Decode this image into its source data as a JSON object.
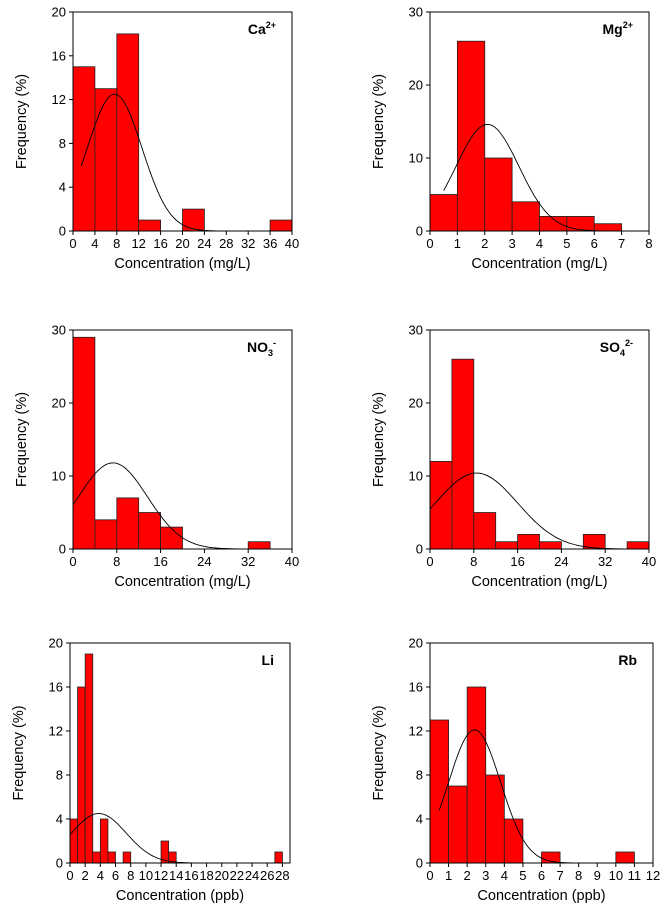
{
  "chart_data": [
    {
      "type": "bar",
      "title": "Ca",
      "title_sup": "2+",
      "xlabel": "Concentration (mg/L)",
      "ylabel": "Frequency (%)",
      "xlim": [
        0,
        40
      ],
      "ylim": [
        0,
        20
      ],
      "xticks": [
        "0",
        "4",
        "8",
        "12",
        "16",
        "20",
        "24",
        "28",
        "32",
        "36",
        "40"
      ],
      "yticks": [
        "0",
        "4",
        "8",
        "12",
        "16",
        "20"
      ],
      "bins": [
        [
          0,
          4,
          15
        ],
        [
          4,
          8,
          13
        ],
        [
          8,
          12,
          18
        ],
        [
          12,
          16,
          1
        ],
        [
          20,
          24,
          2
        ],
        [
          36,
          40,
          1
        ]
      ],
      "normal_curve": {
        "mean": 7.6,
        "sd": 5.0,
        "peak": 12.5,
        "range": [
          1.5,
          38
        ]
      }
    },
    {
      "type": "bar",
      "title": "Mg",
      "title_sup": "2+",
      "xlabel": "Concentration (mg/L)",
      "ylabel": "Frequency (%)",
      "xlim": [
        0,
        8
      ],
      "ylim": [
        0,
        30
      ],
      "xticks": [
        "0",
        "1",
        "2",
        "3",
        "4",
        "5",
        "6",
        "7",
        "8"
      ],
      "yticks": [
        "0",
        "10",
        "20",
        "30"
      ],
      "bins": [
        [
          0,
          1,
          5
        ],
        [
          1,
          2,
          26
        ],
        [
          2,
          3,
          10
        ],
        [
          3,
          4,
          4
        ],
        [
          4,
          5,
          2
        ],
        [
          5,
          6,
          2
        ],
        [
          6,
          7,
          1
        ]
      ],
      "normal_curve": {
        "mean": 2.1,
        "sd": 1.15,
        "peak": 14.6,
        "range": [
          0.5,
          7
        ]
      }
    },
    {
      "type": "bar",
      "title": "NO",
      "title_sub": "3",
      "title_sup": "-",
      "xlabel": "Concentration (mg/L)",
      "ylabel": "Frequency (%)",
      "xlim": [
        0,
        40
      ],
      "ylim": [
        0,
        30
      ],
      "xticks": [
        "0",
        "8",
        "16",
        "24",
        "32",
        "40"
      ],
      "yticks": [
        "0",
        "10",
        "20",
        "30"
      ],
      "bins": [
        [
          0,
          4,
          29
        ],
        [
          4,
          8,
          4
        ],
        [
          8,
          12,
          7
        ],
        [
          12,
          16,
          5
        ],
        [
          16,
          20,
          3
        ],
        [
          32,
          36,
          1
        ]
      ],
      "normal_curve": {
        "mean": 7.3,
        "sd": 6.3,
        "peak": 11.8,
        "range": [
          0,
          36
        ]
      }
    },
    {
      "type": "bar",
      "title": "SO",
      "title_sub": "4",
      "title_sup": "2-",
      "xlabel": "Concentration (mg/L)",
      "ylabel": "Frequency (%)",
      "xlim": [
        0,
        40
      ],
      "ylim": [
        0,
        30
      ],
      "xticks": [
        "0",
        "8",
        "16",
        "24",
        "32",
        "40"
      ],
      "yticks": [
        "0",
        "10",
        "20",
        "30"
      ],
      "bins": [
        [
          0,
          4,
          12
        ],
        [
          4,
          8,
          26
        ],
        [
          8,
          12,
          5
        ],
        [
          12,
          16,
          1
        ],
        [
          16,
          20,
          2
        ],
        [
          20,
          24,
          1
        ],
        [
          28,
          32,
          2
        ],
        [
          36,
          40,
          1
        ]
      ],
      "normal_curve": {
        "mean": 8.5,
        "sd": 7.5,
        "peak": 10.4,
        "range": [
          0,
          40
        ]
      }
    },
    {
      "type": "bar",
      "title": "Li",
      "xlabel": "Concentration (ppb)",
      "ylabel": "Frequency (%)",
      "xlim": [
        0,
        29
      ],
      "ylim": [
        0,
        20
      ],
      "xticks": [
        "0",
        "2",
        "4",
        "6",
        "8",
        "10",
        "12",
        "14",
        "16",
        "18",
        "20",
        "22",
        "24",
        "26",
        "28"
      ],
      "yticks": [
        "0",
        "4",
        "8",
        "12",
        "16",
        "20"
      ],
      "bins": [
        [
          0,
          1,
          4
        ],
        [
          1,
          2,
          16
        ],
        [
          2,
          3,
          19
        ],
        [
          3,
          4,
          1
        ],
        [
          4,
          5,
          4
        ],
        [
          5,
          6,
          1
        ],
        [
          7,
          8,
          1
        ],
        [
          12,
          13,
          2
        ],
        [
          13,
          14,
          1
        ],
        [
          27,
          28,
          1
        ]
      ],
      "normal_curve": {
        "mean": 3.8,
        "sd": 3.6,
        "peak": 4.5,
        "range": [
          0,
          28
        ]
      }
    },
    {
      "type": "bar",
      "title": "Rb",
      "xlabel": "Concentration (ppb)",
      "ylabel": "Frequency (%)",
      "xlim": [
        0,
        12
      ],
      "ylim": [
        0,
        20
      ],
      "xticks": [
        "0",
        "1",
        "2",
        "3",
        "4",
        "5",
        "6",
        "7",
        "8",
        "9",
        "10",
        "11",
        "12"
      ],
      "yticks": [
        "0",
        "4",
        "8",
        "12",
        "16",
        "20"
      ],
      "bins": [
        [
          0,
          1,
          13
        ],
        [
          1,
          2,
          7
        ],
        [
          2,
          3,
          16
        ],
        [
          3,
          4,
          8
        ],
        [
          4,
          5,
          4
        ],
        [
          6,
          7,
          1
        ],
        [
          10,
          11,
          1
        ]
      ],
      "normal_curve": {
        "mean": 2.4,
        "sd": 1.4,
        "peak": 12.1,
        "range": [
          0.5,
          10.8
        ]
      }
    }
  ]
}
